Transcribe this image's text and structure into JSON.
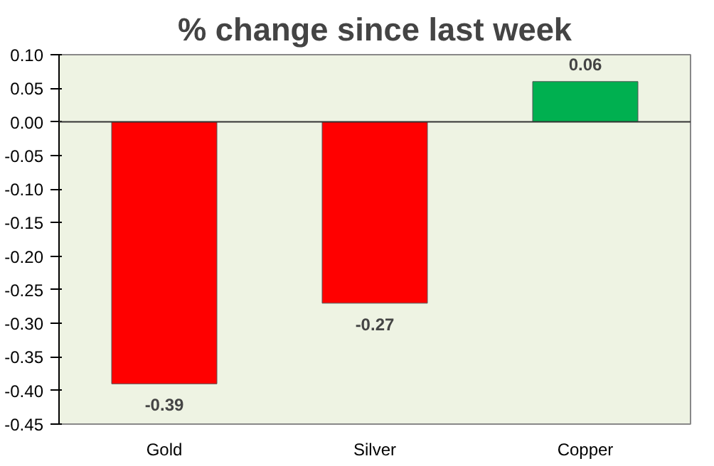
{
  "chart_data": {
    "type": "bar",
    "title": "% change since last week",
    "categories": [
      "Gold",
      "Silver",
      "Copper"
    ],
    "values": [
      -0.39,
      -0.27,
      0.06
    ],
    "colors": [
      "#ff0000",
      "#ff0000",
      "#00b050"
    ],
    "ylim": [
      -0.45,
      0.1
    ],
    "yticks": [
      {
        "value": -0.45,
        "label": "-0.45"
      },
      {
        "value": -0.4,
        "label": "-0.40"
      },
      {
        "value": -0.35,
        "label": "-0.35"
      },
      {
        "value": -0.3,
        "label": "-0.30"
      },
      {
        "value": -0.25,
        "label": "-0.25"
      },
      {
        "value": -0.2,
        "label": "-0.20"
      },
      {
        "value": -0.15,
        "label": "-0.15"
      },
      {
        "value": -0.1,
        "label": "-0.10"
      },
      {
        "value": -0.05,
        "label": "-0.05"
      },
      {
        "value": 0,
        "label": "0.00"
      },
      {
        "value": 0.05,
        "label": "0.05"
      },
      {
        "value": 0.1,
        "label": "0.10"
      }
    ],
    "ref_lines": [
      {
        "axis": "y",
        "value": 0,
        "color": "#333333"
      }
    ],
    "data_labels": true,
    "grid": false
  }
}
